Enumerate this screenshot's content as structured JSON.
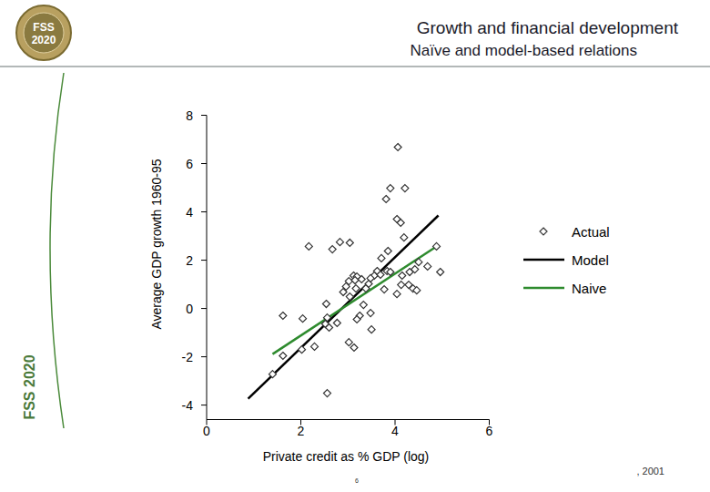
{
  "chart_data": {
    "type": "scatter",
    "title": "Growth and financial development",
    "subtitle": "Naïve and model-based relations",
    "x_label": "Private credit as % GDP (log)",
    "y_label": "Average GDP growth 1960-95",
    "xlim": [
      0,
      6
    ],
    "xticks": [
      0,
      2,
      4,
      6
    ],
    "ylim": [
      -4.6,
      8
    ],
    "yticks": [
      -4,
      -2,
      0,
      2,
      4,
      6,
      8
    ],
    "grid": false,
    "legend": "right",
    "annotations": [
      "FSS 2020",
      "FSS 2020",
      "6",
      ", 2001"
    ],
    "series": [
      {
        "name": "Actual",
        "type": "scatter",
        "marker": "diamond",
        "color": "#333333",
        "x": [
          4.06,
          3.9,
          4.21,
          3.81,
          4.04,
          4.12,
          4.19,
          2.17,
          2.67,
          2.83,
          3.04,
          4.88,
          3.85,
          4.5,
          3.71,
          3.62,
          3.56,
          3.83,
          3.9,
          4.15,
          4.31,
          4.42,
          4.69,
          4.96,
          4.29,
          4.38,
          4.46,
          4.04,
          4.13,
          3.02,
          3.12,
          3.19,
          3.29,
          2.96,
          2.9,
          3.04,
          3.17,
          3.38,
          3.44,
          3.48,
          3.69,
          3.77,
          3.33,
          3.25,
          3.48,
          3.19,
          2.54,
          2.56,
          2.52,
          2.77,
          2.6,
          2.04,
          1.62,
          3.02,
          3.13,
          3.5,
          2.29,
          2.02,
          1.62,
          1.4,
          2.56,
          3.15
        ],
        "values": [
          6.68,
          4.98,
          4.98,
          4.53,
          3.7,
          3.55,
          2.94,
          2.57,
          2.45,
          2.75,
          2.72,
          2.57,
          2.38,
          1.92,
          2.08,
          1.55,
          1.36,
          1.55,
          1.51,
          1.36,
          1.51,
          1.62,
          1.74,
          1.51,
          0.98,
          0.83,
          0.75,
          0.6,
          0.98,
          1.13,
          1.36,
          1.32,
          1.21,
          0.91,
          0.68,
          0.49,
          0.83,
          0.83,
          1.02,
          1.25,
          1.4,
          0.79,
          0.15,
          -0.3,
          -0.19,
          -0.45,
          0.19,
          -0.38,
          -0.64,
          -0.6,
          -0.79,
          -0.42,
          -0.3,
          -1.4,
          -1.62,
          -0.87,
          -1.58,
          -1.7,
          -1.96,
          -2.72,
          -3.51,
          1.17
        ]
      },
      {
        "name": "Model",
        "type": "line",
        "line_style": "solid",
        "color": "#000000",
        "x": [
          0.88,
          4.92
        ],
        "values": [
          -3.74,
          3.85
        ]
      },
      {
        "name": "Naive",
        "type": "line",
        "line_style": "solid",
        "color": "#2e8b2e",
        "x": [
          1.4,
          4.88
        ],
        "values": [
          -1.89,
          2.57
        ]
      }
    ]
  }
}
